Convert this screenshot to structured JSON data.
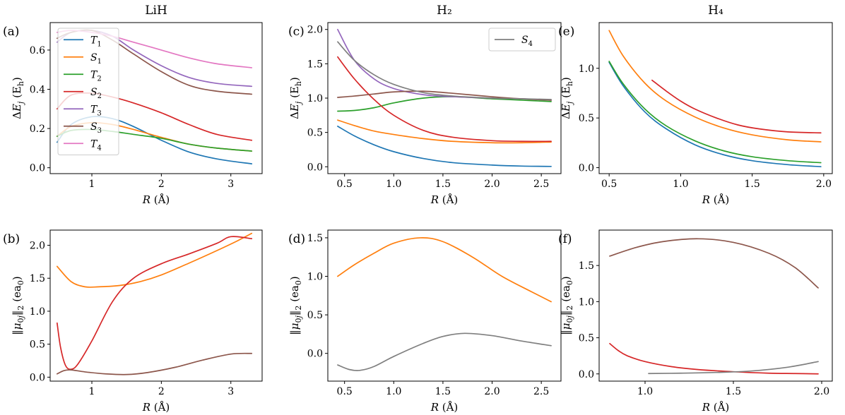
{
  "colors": {
    "T1": "#1f77b4",
    "S1": "#ff7f0e",
    "T2": "#2ca02c",
    "S2": "#d62728",
    "T3": "#9467bd",
    "S3": "#8c564b",
    "T4": "#e377c2",
    "S4": "#7f7f7f"
  },
  "chart_data": [
    {
      "id": "a",
      "type": "line",
      "letter": "(a)",
      "title": "LiH",
      "xlabel": "R (Å)",
      "ylabel": "ΔE_j (E_h)",
      "xlim": [
        0.4,
        3.45
      ],
      "ylim": [
        -0.03,
        0.74
      ],
      "xticks": [
        1,
        2,
        3
      ],
      "xtick_labels": [
        "1",
        "2",
        "3"
      ],
      "yticks": [
        0.0,
        0.2,
        0.4,
        0.6
      ],
      "ytick_labels": [
        "0.0",
        "0.2",
        "0.4",
        "0.6"
      ],
      "legend": [
        "T1",
        "S1",
        "T2",
        "S2",
        "T3",
        "S3",
        "T4"
      ],
      "series": [
        {
          "name": "T1",
          "x": [
            0.5,
            0.7,
            1.0,
            1.3,
            1.6,
            2.0,
            2.4,
            2.8,
            3.3
          ],
          "y": [
            0.13,
            0.22,
            0.26,
            0.25,
            0.21,
            0.14,
            0.08,
            0.045,
            0.02
          ]
        },
        {
          "name": "S1",
          "x": [
            0.5,
            0.7,
            1.0,
            1.3,
            1.6,
            2.0,
            2.4,
            2.8,
            3.3
          ],
          "y": [
            0.16,
            0.21,
            0.23,
            0.22,
            0.195,
            0.155,
            0.12,
            0.1,
            0.085
          ]
        },
        {
          "name": "T2",
          "x": [
            0.5,
            0.7,
            1.0,
            1.3,
            1.6,
            2.0,
            2.4,
            2.8,
            3.3
          ],
          "y": [
            0.16,
            0.19,
            0.195,
            0.185,
            0.17,
            0.15,
            0.12,
            0.1,
            0.085
          ]
        },
        {
          "name": "S2",
          "x": [
            0.5,
            0.7,
            1.0,
            1.3,
            1.6,
            2.0,
            2.4,
            2.8,
            3.3
          ],
          "y": [
            0.3,
            0.37,
            0.38,
            0.36,
            0.33,
            0.28,
            0.22,
            0.17,
            0.14
          ]
        },
        {
          "name": "T3",
          "x": [
            0.5,
            0.7,
            1.0,
            1.3,
            1.6,
            2.0,
            2.4,
            2.8,
            3.3
          ],
          "y": [
            0.64,
            0.69,
            0.7,
            0.67,
            0.6,
            0.52,
            0.46,
            0.43,
            0.415
          ]
        },
        {
          "name": "S3",
          "x": [
            0.5,
            0.7,
            1.0,
            1.3,
            1.6,
            2.0,
            2.4,
            2.8,
            3.3
          ],
          "y": [
            0.66,
            0.69,
            0.7,
            0.65,
            0.58,
            0.49,
            0.42,
            0.39,
            0.375
          ]
        },
        {
          "name": "T4",
          "x": [
            0.5,
            0.7,
            1.0,
            1.3,
            1.6,
            2.0,
            2.4,
            2.8,
            3.3
          ],
          "y": [
            0.69,
            0.7,
            0.69,
            0.67,
            0.64,
            0.6,
            0.56,
            0.53,
            0.51
          ]
        }
      ]
    },
    {
      "id": "c",
      "type": "line",
      "letter": "(c)",
      "title": "H₂",
      "xlabel": "R (Å)",
      "ylabel": "ΔE_j (E_h)",
      "xlim": [
        0.33,
        2.7
      ],
      "ylim": [
        -0.1,
        2.1
      ],
      "xticks": [
        0.5,
        1.0,
        1.5,
        2.0,
        2.5
      ],
      "xtick_labels": [
        "0.5",
        "1.0",
        "1.5",
        "2.0",
        "2.5"
      ],
      "yticks": [
        0.0,
        0.5,
        1.0,
        1.5,
        2.0
      ],
      "ytick_labels": [
        "0.0",
        "0.5",
        "1.0",
        "1.5",
        "2.0"
      ],
      "legend": [
        "S4"
      ],
      "series": [
        {
          "name": "T1",
          "x": [
            0.43,
            0.6,
            0.8,
            1.0,
            1.3,
            1.6,
            2.0,
            2.3,
            2.6
          ],
          "y": [
            0.59,
            0.45,
            0.32,
            0.22,
            0.12,
            0.06,
            0.025,
            0.01,
            0.005
          ]
        },
        {
          "name": "S1",
          "x": [
            0.43,
            0.6,
            0.8,
            1.0,
            1.3,
            1.6,
            2.0,
            2.3,
            2.6
          ],
          "y": [
            0.68,
            0.6,
            0.52,
            0.47,
            0.41,
            0.37,
            0.35,
            0.35,
            0.36
          ]
        },
        {
          "name": "T2",
          "x": [
            0.43,
            0.6,
            0.8,
            1.0,
            1.3,
            1.6,
            2.0,
            2.3,
            2.6
          ],
          "y": [
            0.81,
            0.82,
            0.86,
            0.93,
            1.0,
            1.02,
            0.99,
            0.97,
            0.95
          ]
        },
        {
          "name": "S2",
          "x": [
            0.43,
            0.6,
            0.8,
            1.0,
            1.3,
            1.6,
            2.0,
            2.3,
            2.6
          ],
          "y": [
            1.6,
            1.28,
            0.98,
            0.75,
            0.53,
            0.43,
            0.38,
            0.37,
            0.37
          ]
        },
        {
          "name": "T3",
          "x": [
            0.43,
            0.6,
            0.8,
            1.0,
            1.3,
            1.6,
            2.0,
            2.3,
            2.6
          ],
          "y": [
            2.0,
            1.55,
            1.28,
            1.14,
            1.05,
            1.02,
            1.0,
            0.99,
            0.97
          ]
        },
        {
          "name": "S3",
          "x": [
            0.43,
            0.6,
            0.8,
            1.0,
            1.3,
            1.6,
            2.0,
            2.3,
            2.6
          ],
          "y": [
            1.01,
            1.03,
            1.06,
            1.09,
            1.1,
            1.07,
            1.02,
            0.99,
            0.97
          ]
        },
        {
          "name": "S4",
          "x": [
            0.43,
            0.6,
            0.8,
            1.0,
            1.3,
            1.6,
            2.0,
            2.3,
            2.6
          ],
          "y": [
            1.82,
            1.55,
            1.34,
            1.2,
            1.08,
            1.03,
            1.0,
            0.99,
            0.98
          ]
        }
      ]
    },
    {
      "id": "e",
      "type": "line",
      "letter": "(e)",
      "title": "H₄",
      "xlabel": "R (Å)",
      "ylabel": "ΔE_j (E_h)",
      "xlim": [
        0.43,
        2.06
      ],
      "ylim": [
        -0.06,
        1.46
      ],
      "xticks": [
        0.5,
        1.0,
        1.5,
        2.0
      ],
      "xtick_labels": [
        "0.5",
        "1.0",
        "1.5",
        "2.0"
      ],
      "yticks": [
        0.0,
        0.5,
        1.0
      ],
      "ytick_labels": [
        "0.0",
        "0.5",
        "1.0"
      ],
      "legend": [],
      "series": [
        {
          "name": "T1",
          "x": [
            0.5,
            0.6,
            0.75,
            0.9,
            1.1,
            1.3,
            1.5,
            1.75,
            1.98
          ],
          "y": [
            1.06,
            0.82,
            0.56,
            0.39,
            0.23,
            0.13,
            0.07,
            0.03,
            0.01
          ]
        },
        {
          "name": "T2",
          "x": [
            0.5,
            0.6,
            0.75,
            0.9,
            1.1,
            1.3,
            1.5,
            1.75,
            1.98
          ],
          "y": [
            1.07,
            0.84,
            0.59,
            0.42,
            0.27,
            0.17,
            0.11,
            0.07,
            0.05
          ]
        },
        {
          "name": "S1",
          "x": [
            0.5,
            0.6,
            0.75,
            0.9,
            1.1,
            1.3,
            1.5,
            1.75,
            1.98
          ],
          "y": [
            1.38,
            1.12,
            0.85,
            0.67,
            0.51,
            0.4,
            0.33,
            0.28,
            0.26
          ]
        },
        {
          "name": "S2",
          "x": [
            0.8,
            0.9,
            1.0,
            1.1,
            1.25,
            1.4,
            1.55,
            1.75,
            1.98
          ],
          "y": [
            0.88,
            0.77,
            0.67,
            0.59,
            0.5,
            0.43,
            0.39,
            0.36,
            0.35
          ]
        }
      ]
    },
    {
      "id": "b",
      "type": "line",
      "letter": "(b)",
      "title": "",
      "xlabel": "R (Å)",
      "ylabel": "‖μ0j‖2 (ea0)",
      "xlim": [
        0.4,
        3.45
      ],
      "ylim": [
        -0.06,
        2.23
      ],
      "xticks": [
        1,
        2,
        3
      ],
      "xtick_labels": [
        "1",
        "2",
        "3"
      ],
      "yticks": [
        0.0,
        0.5,
        1.0,
        1.5,
        2.0
      ],
      "ytick_labels": [
        "0.0",
        "0.5",
        "1.0",
        "1.5",
        "2.0"
      ],
      "legend": [],
      "series": [
        {
          "name": "S1",
          "x": [
            0.5,
            0.7,
            0.9,
            1.1,
            1.4,
            1.7,
            2.0,
            2.4,
            2.8,
            3.1,
            3.3
          ],
          "y": [
            1.68,
            1.45,
            1.37,
            1.37,
            1.39,
            1.45,
            1.55,
            1.73,
            1.92,
            2.07,
            2.18
          ]
        },
        {
          "name": "S2",
          "x": [
            0.5,
            0.55,
            0.62,
            0.7,
            0.8,
            1.0,
            1.3,
            1.6,
            2.0,
            2.4,
            2.8,
            3.0,
            3.3
          ],
          "y": [
            0.82,
            0.45,
            0.18,
            0.12,
            0.2,
            0.55,
            1.15,
            1.5,
            1.72,
            1.87,
            2.03,
            2.13,
            2.1
          ]
        },
        {
          "name": "S3",
          "x": [
            0.5,
            0.6,
            0.7,
            0.9,
            1.2,
            1.5,
            1.8,
            2.2,
            2.6,
            3.0,
            3.3
          ],
          "y": [
            0.05,
            0.1,
            0.11,
            0.08,
            0.05,
            0.04,
            0.07,
            0.15,
            0.26,
            0.35,
            0.36
          ]
        }
      ]
    },
    {
      "id": "d",
      "type": "line",
      "letter": "(d)",
      "title": "",
      "xlabel": "R (Å)",
      "ylabel": "‖μ0j‖2 (ea0)",
      "xlim": [
        0.33,
        2.7
      ],
      "ylim": [
        -0.36,
        1.6
      ],
      "xticks": [
        0.5,
        1.0,
        1.5,
        2.0,
        2.5
      ],
      "xtick_labels": [
        "0.5",
        "1.0",
        "1.5",
        "2.0",
        "2.5"
      ],
      "yticks": [
        0.0,
        0.5,
        1.0,
        1.5
      ],
      "ytick_labels": [
        "0.0",
        "0.5",
        "1.0",
        "1.5"
      ],
      "legend": [],
      "series": [
        {
          "name": "S1",
          "x": [
            0.43,
            0.6,
            0.8,
            1.0,
            1.27,
            1.5,
            1.8,
            2.1,
            2.4,
            2.6
          ],
          "y": [
            1.0,
            1.15,
            1.3,
            1.43,
            1.5,
            1.45,
            1.25,
            1.0,
            0.8,
            0.67
          ]
        },
        {
          "name": "S4",
          "x": [
            0.43,
            0.55,
            0.66,
            0.8,
            1.0,
            1.3,
            1.5,
            1.72,
            2.0,
            2.3,
            2.6
          ],
          "y": [
            -0.15,
            -0.21,
            -0.22,
            -0.17,
            -0.04,
            0.13,
            0.22,
            0.26,
            0.23,
            0.16,
            0.1
          ]
        }
      ]
    },
    {
      "id": "f",
      "type": "line",
      "letter": "(f)",
      "title": "",
      "xlabel": "R (Å)",
      "ylabel": "‖μ0j‖2 (ea0)",
      "xlim": [
        0.74,
        2.06
      ],
      "ylim": [
        -0.1,
        1.99
      ],
      "xticks": [
        1.0,
        1.5,
        2.0
      ],
      "xtick_labels": [
        "1.0",
        "1.5",
        "2.0"
      ],
      "yticks": [
        0.0,
        0.5,
        1.0,
        1.5
      ],
      "ytick_labels": [
        "0.0",
        "0.5",
        "1.0",
        "1.5"
      ],
      "legend": [],
      "series": [
        {
          "name": "S3",
          "x": [
            0.8,
            0.95,
            1.1,
            1.3,
            1.5,
            1.7,
            1.85,
            1.98
          ],
          "y": [
            1.63,
            1.75,
            1.83,
            1.87,
            1.82,
            1.67,
            1.47,
            1.19
          ]
        },
        {
          "name": "S2",
          "x": [
            0.8,
            0.85,
            0.9,
            1.0,
            1.15,
            1.3,
            1.5,
            1.7,
            1.85,
            1.98
          ],
          "y": [
            0.42,
            0.32,
            0.25,
            0.17,
            0.1,
            0.06,
            0.03,
            0.01,
            0.005,
            0.0
          ]
        },
        {
          "name": "S4",
          "x": [
            1.02,
            1.2,
            1.4,
            1.6,
            1.8,
            1.98
          ],
          "y": [
            0.005,
            0.01,
            0.02,
            0.04,
            0.09,
            0.17
          ]
        }
      ]
    }
  ]
}
